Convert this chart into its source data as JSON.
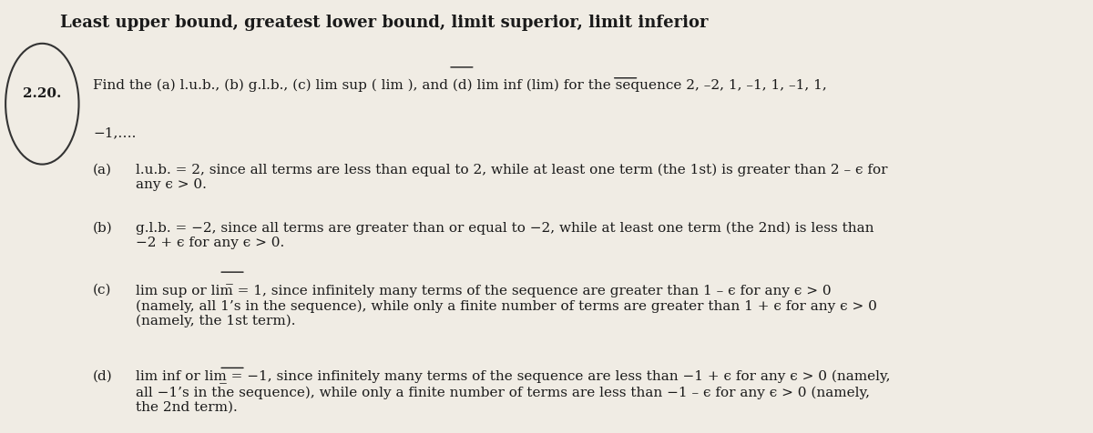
{
  "title": "Least upper bound, greatest lower bound, limit superior, limit inferior",
  "title_fontsize": 13,
  "title_fontweight": "bold",
  "body_fontsize": 11,
  "background_color": "#f0ece4",
  "text_color": "#1a1a1a",
  "problem_number": "2.20.",
  "problem_statement": "Find the (a) l.u.b., (b) g.l.b., (c) lim sup (̅lim ), and (d) lim inf (̲lim) for the sequence 2, –2, 1, –1, 1, –1, 1,",
  "problem_statement2": "−1,….",
  "answer_a_label": "(a)",
  "answer_a_text": "l.u.b. = 2, since all terms are less than equal to 2, while at least one term (the 1st) is greater than 2 – ϵ for\nany ϵ > 0.",
  "answer_b_label": "(b)",
  "answer_b_text": "g.l.b. = −2, since all terms are greater than or equal to −2, while at least one term (the 2nd) is less than\n−2 + ϵ for any ϵ > 0.",
  "answer_c_label": "(c)",
  "answer_c_text": "lim sup or lim̅ = 1, since infinitely many terms of the sequence are greater than 1 – ϵ for any ϵ > 0\n(namely, all 1’s in the sequence), while only a finite number of terms are greater than 1 + ϵ for any ϵ > 0\n(namely, the 1st term).",
  "answer_d_label": "(d)",
  "answer_d_text": "lim inf or lim̲ = −1, since infinitely many terms of the sequence are less than −1 + ϵ for any ϵ > 0 (namely,\nall −1’s in the sequence), while only a finite number of terms are less than −1 – ϵ for any ϵ > 0 (namely,\nthe 2nd term)."
}
